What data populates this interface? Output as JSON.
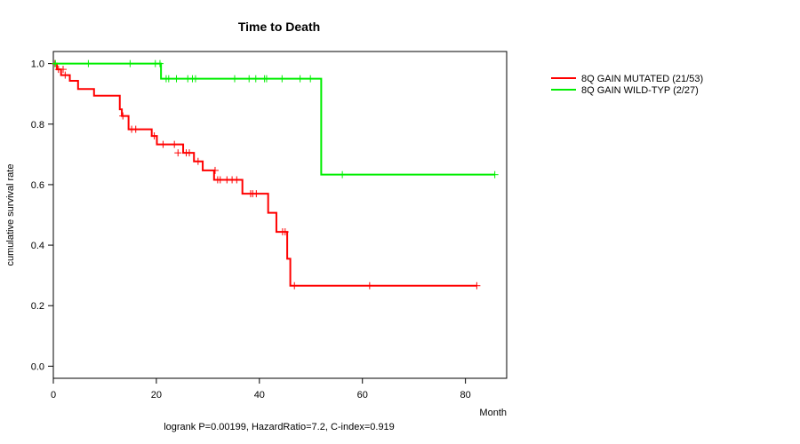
{
  "chart_data": {
    "type": "line",
    "title": "Time to Death",
    "xlabel": "Month",
    "ylabel": "cumulative survival rate",
    "footnote": "logrank P=0.00199, HazardRatio=7.2, C-index=0.919",
    "xlim": [
      0,
      88
    ],
    "ylim": [
      -0.04,
      1.04
    ],
    "xticks": [
      0,
      20,
      40,
      60,
      80
    ],
    "yticks": [
      0.0,
      0.2,
      0.4,
      0.6,
      0.8,
      1.0
    ],
    "xtick_labels": [
      "0",
      "20",
      "40",
      "60",
      "80"
    ],
    "ytick_labels": [
      "0.0",
      "0.2",
      "0.4",
      "0.6",
      "0.8",
      "1.0"
    ],
    "legend_position": "top-right outside",
    "series": [
      {
        "name": "8Q GAIN MUTATED (21/53)",
        "color": "#ff0000",
        "steps": [
          [
            0,
            1.0
          ],
          [
            0.7,
            0.981
          ],
          [
            1.5,
            0.962
          ],
          [
            3.2,
            0.943
          ],
          [
            4.8,
            0.916
          ],
          [
            7.9,
            0.894
          ],
          [
            12.9,
            0.849
          ],
          [
            13.3,
            0.827
          ],
          [
            14.6,
            0.783
          ],
          [
            19.1,
            0.761
          ],
          [
            20.1,
            0.733
          ],
          [
            25.2,
            0.705
          ],
          [
            27.3,
            0.677
          ],
          [
            29.0,
            0.647
          ],
          [
            31.2,
            0.616
          ],
          [
            36.7,
            0.57
          ],
          [
            41.7,
            0.507
          ],
          [
            43.3,
            0.444
          ],
          [
            45.4,
            0.355
          ],
          [
            46.0,
            0.266
          ],
          [
            82.2,
            0.266
          ]
        ],
        "censors": [
          [
            0.3,
            1.0
          ],
          [
            1.0,
            0.981
          ],
          [
            1.9,
            0.981
          ],
          [
            2.3,
            0.962
          ],
          [
            13.5,
            0.827
          ],
          [
            15.2,
            0.783
          ],
          [
            16.0,
            0.783
          ],
          [
            19.6,
            0.761
          ],
          [
            21.3,
            0.733
          ],
          [
            23.5,
            0.733
          ],
          [
            24.2,
            0.705
          ],
          [
            25.8,
            0.705
          ],
          [
            26.4,
            0.705
          ],
          [
            28.1,
            0.677
          ],
          [
            31.4,
            0.647
          ],
          [
            31.9,
            0.616
          ],
          [
            32.4,
            0.616
          ],
          [
            33.7,
            0.616
          ],
          [
            34.7,
            0.616
          ],
          [
            35.6,
            0.616
          ],
          [
            38.3,
            0.57
          ],
          [
            38.7,
            0.57
          ],
          [
            39.4,
            0.57
          ],
          [
            44.5,
            0.444
          ],
          [
            45.0,
            0.444
          ],
          [
            46.8,
            0.266
          ],
          [
            61.4,
            0.266
          ],
          [
            82.2,
            0.266
          ]
        ]
      },
      {
        "name": "8Q GAIN WILD-TYP (2/27)",
        "color": "#00ee00",
        "steps": [
          [
            0,
            1.0
          ],
          [
            20.9,
            0.95
          ],
          [
            52.0,
            0.633
          ],
          [
            85.7,
            0.633
          ]
        ],
        "censors": [
          [
            0.4,
            1.0
          ],
          [
            6.8,
            1.0
          ],
          [
            14.9,
            1.0
          ],
          [
            19.8,
            1.0
          ],
          [
            20.7,
            1.0
          ],
          [
            21.9,
            0.95
          ],
          [
            22.4,
            0.95
          ],
          [
            23.9,
            0.95
          ],
          [
            26.1,
            0.95
          ],
          [
            27.0,
            0.95
          ],
          [
            27.6,
            0.95
          ],
          [
            35.2,
            0.95
          ],
          [
            38.0,
            0.95
          ],
          [
            39.3,
            0.95
          ],
          [
            41.0,
            0.95
          ],
          [
            41.4,
            0.95
          ],
          [
            44.4,
            0.95
          ],
          [
            47.9,
            0.95
          ],
          [
            49.9,
            0.95
          ],
          [
            56.1,
            0.633
          ],
          [
            85.7,
            0.633
          ]
        ]
      }
    ]
  }
}
